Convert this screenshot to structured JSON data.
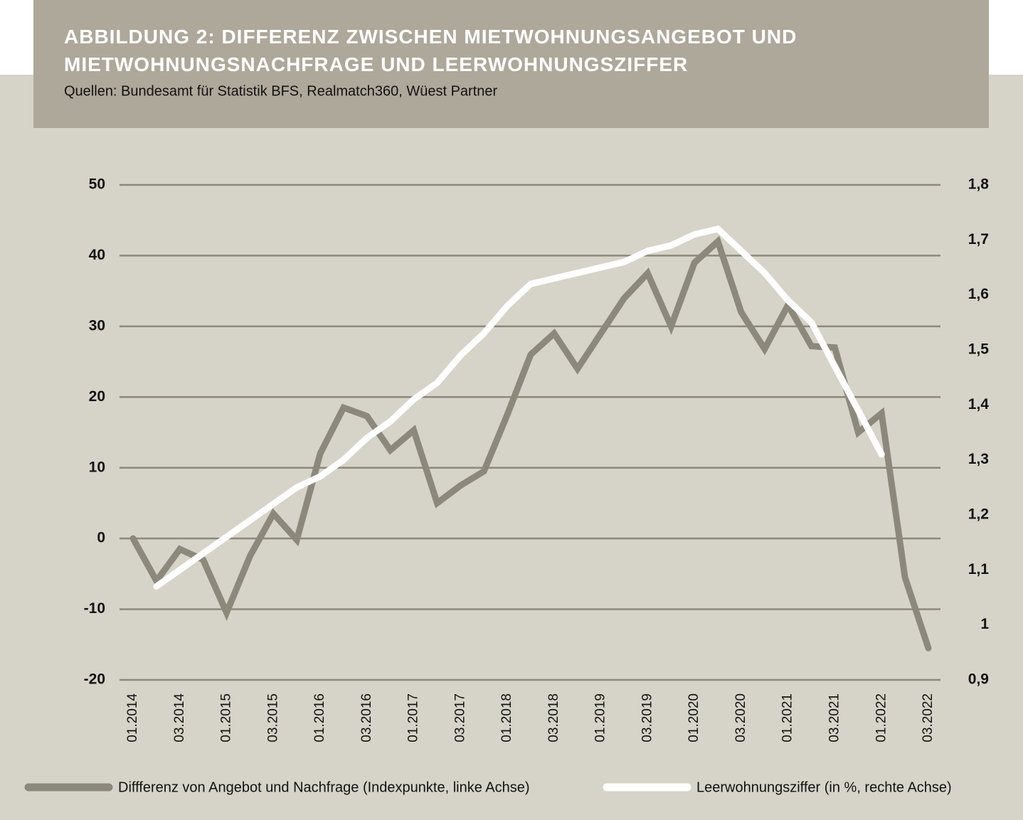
{
  "chart_data": {
    "type": "line",
    "title": "ABBILDUNG 2: DIFFERENZ ZWISCHEN MIETWOHNUNGSANGEBOT UND MIETWOHNUNGSNACHFRAGE UND LEERWOHNUNGSZIFFER",
    "subtitle": "Quellen: Bundesamt für Statistik BFS, Realmatch360, Wüest Partner",
    "categories": [
      "01.2014",
      null,
      "03.2014",
      null,
      "01.2015",
      null,
      "03.2015",
      null,
      "01.2016",
      null,
      "03.2016",
      null,
      "01.2017",
      null,
      "03.2017",
      null,
      "01.2018",
      null,
      "03.2018",
      null,
      "01.2019",
      null,
      "03.2019",
      null,
      "01.2020",
      null,
      "03.2020",
      null,
      "01.2021",
      null,
      "03.2021",
      null,
      "01.2022",
      null,
      "03.2022"
    ],
    "series": [
      {
        "name": "Diffferenz von Angebot und Nachfrage (Indexpunkte, linke Achse)",
        "color": "#8c897c",
        "values": [
          0,
          -6,
          -1.5,
          -3,
          -10.5,
          -2.5,
          3.5,
          -0.2,
          12,
          18.5,
          17.3,
          12.5,
          15.3,
          5,
          7.5,
          9.5,
          17.5,
          26,
          29,
          24,
          29,
          34,
          37.5,
          30,
          39,
          42,
          32,
          26.8,
          33,
          27.2,
          27,
          15,
          17.7,
          -5.5,
          -15.5
        ]
      },
      {
        "name": "Leerwohnungsziffer (in %, rechte Achse)",
        "color": "#ffffff",
        "axis": "y2",
        "values": [
          null,
          1.07,
          1.1,
          1.13,
          1.16,
          1.19,
          1.22,
          1.25,
          1.27,
          1.3,
          1.34,
          1.37,
          1.41,
          1.44,
          1.49,
          1.53,
          1.58,
          1.62,
          1.63,
          1.64,
          1.65,
          1.66,
          1.68,
          1.69,
          1.71,
          1.72,
          1.68,
          1.64,
          1.59,
          1.55,
          1.47,
          1.39,
          1.31,
          null,
          null
        ]
      }
    ],
    "ylim": [
      -20,
      50
    ],
    "yticks": [
      -20,
      -10,
      0,
      10,
      20,
      30,
      40,
      50
    ],
    "y2lim": [
      0.9,
      1.8
    ],
    "y2ticks": [
      {
        "value": 0.9,
        "label": "0,9"
      },
      1,
      {
        "value": 1.1,
        "label": "1,1"
      },
      {
        "value": 1.2,
        "label": "1,2"
      },
      {
        "value": 1.3,
        "label": "1,3"
      },
      {
        "value": 1.4,
        "label": "1,4"
      },
      {
        "value": 1.5,
        "label": "1,5"
      },
      {
        "value": 1.6,
        "label": "1,6"
      },
      {
        "value": 1.7,
        "label": "1,7"
      },
      {
        "value": 1.8,
        "label": "1,8"
      }
    ],
    "grid": true
  }
}
